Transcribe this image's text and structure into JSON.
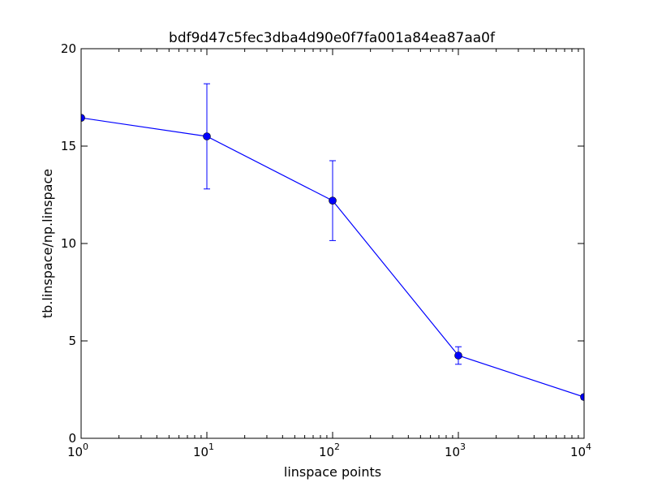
{
  "chart_data": {
    "type": "line",
    "title": "bdf9d47c5fec3dba4d90e0f7fa001a84ea87aa0f",
    "xlabel": "linspace points",
    "ylabel": "tb.linspace/np.linspace",
    "xscale": "log",
    "xlim": [
      1,
      10000
    ],
    "ylim": [
      0,
      20
    ],
    "x_ticks": [
      {
        "base": "10",
        "exp": "0",
        "value": 1
      },
      {
        "base": "10",
        "exp": "1",
        "value": 10
      },
      {
        "base": "10",
        "exp": "2",
        "value": 100
      },
      {
        "base": "10",
        "exp": "3",
        "value": 1000
      },
      {
        "base": "10",
        "exp": "4",
        "value": 10000
      }
    ],
    "y_ticks": [
      {
        "label": "0",
        "value": 0
      },
      {
        "label": "5",
        "value": 5
      },
      {
        "label": "10",
        "value": 10
      },
      {
        "label": "15",
        "value": 15
      },
      {
        "label": "20",
        "value": 20
      }
    ],
    "grid": false,
    "series": [
      {
        "color": "#0000ff",
        "x": [
          1,
          10,
          100,
          1000,
          10000
        ],
        "y": [
          16.45,
          15.5,
          12.2,
          4.25,
          2.12
        ],
        "yerr": [
          0.0,
          2.7,
          2.05,
          0.45,
          0.12
        ]
      }
    ]
  }
}
